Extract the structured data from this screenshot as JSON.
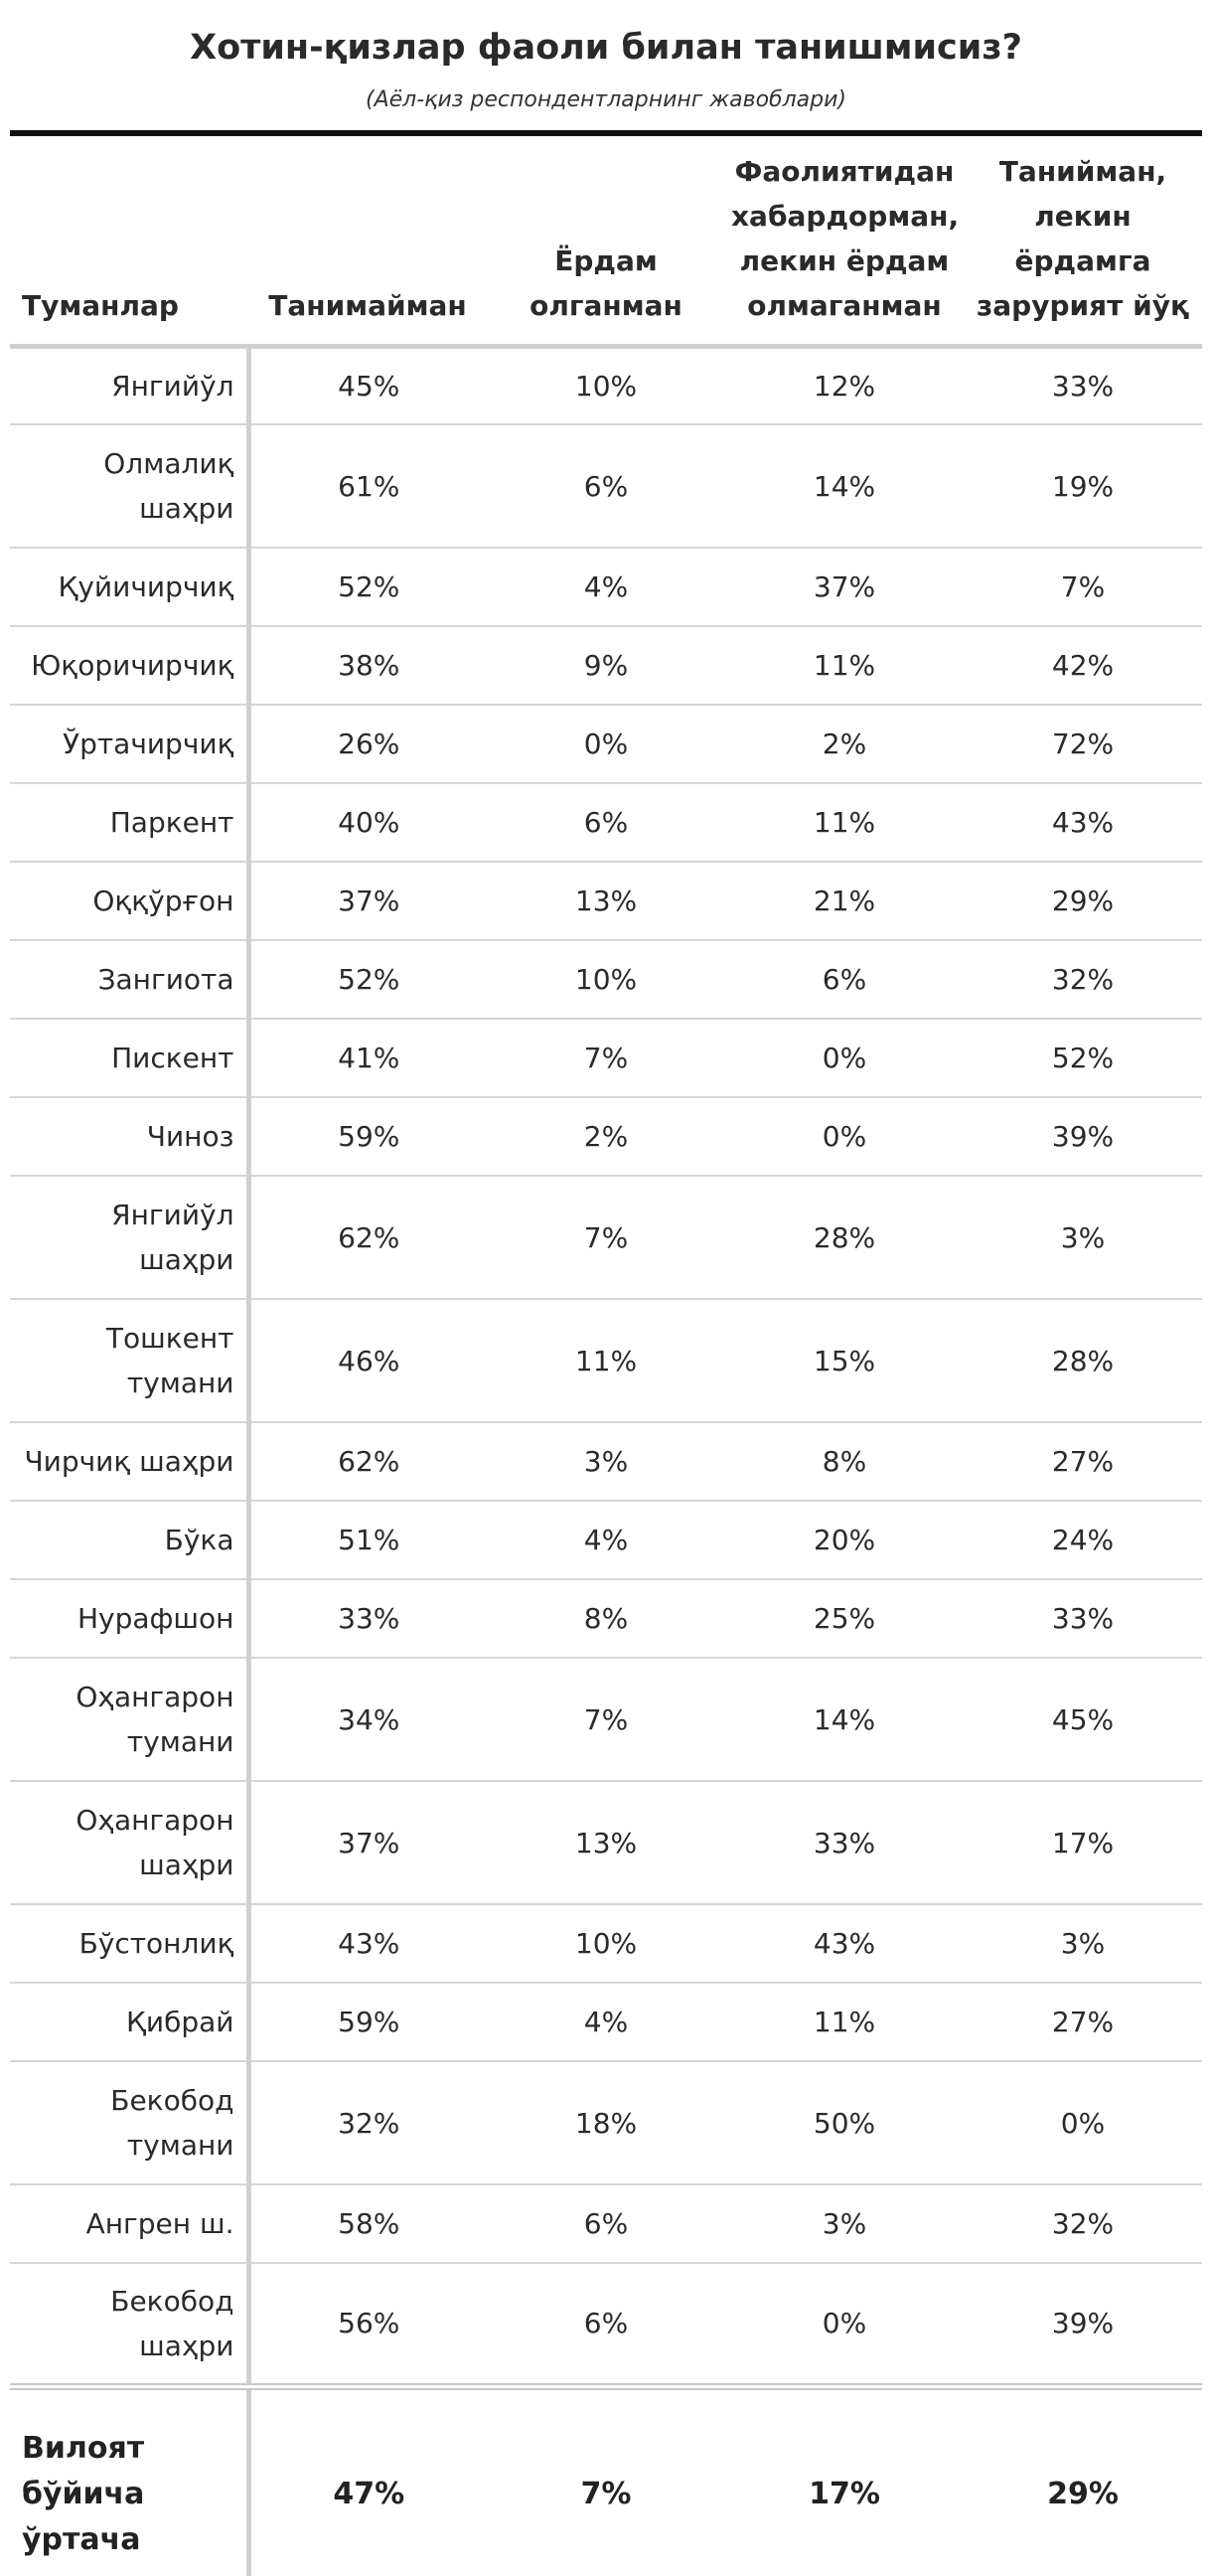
{
  "title": "Хотин-қизлар фаоли билан танишмисиз?",
  "subtitle": "(Аёл-қиз респондентларнинг жавоблари)",
  "chart_data": {
    "type": "table",
    "columns": [
      "Туманлар",
      "Танимайман",
      "Ёрдам олганман",
      "Фаолиятидан хабардорман, лекин ёрдам олмаганман",
      "Танийман, лекин ёрдамга зарурият йўқ"
    ],
    "rows": [
      {
        "name": "Янгийўл",
        "values": [
          "45%",
          "10%",
          "12%",
          "33%"
        ]
      },
      {
        "name": "Олмалиқ шаҳри",
        "values": [
          "61%",
          "6%",
          "14%",
          "19%"
        ]
      },
      {
        "name": "Қуйичирчиқ",
        "values": [
          "52%",
          "4%",
          "37%",
          "7%"
        ]
      },
      {
        "name": "Юқоричирчиқ",
        "values": [
          "38%",
          "9%",
          "11%",
          "42%"
        ]
      },
      {
        "name": "Ўртачирчиқ",
        "values": [
          "26%",
          "0%",
          "2%",
          "72%"
        ]
      },
      {
        "name": "Паркент",
        "values": [
          "40%",
          "6%",
          "11%",
          "43%"
        ]
      },
      {
        "name": "Оққўрғон",
        "values": [
          "37%",
          "13%",
          "21%",
          "29%"
        ]
      },
      {
        "name": "Зангиота",
        "values": [
          "52%",
          "10%",
          "6%",
          "32%"
        ]
      },
      {
        "name": "Пискент",
        "values": [
          "41%",
          "7%",
          "0%",
          "52%"
        ]
      },
      {
        "name": "Чиноз",
        "values": [
          "59%",
          "2%",
          "0%",
          "39%"
        ]
      },
      {
        "name": "Янгийўл шаҳри",
        "values": [
          "62%",
          "7%",
          "28%",
          "3%"
        ]
      },
      {
        "name": "Тошкент тумани",
        "values": [
          "46%",
          "11%",
          "15%",
          "28%"
        ]
      },
      {
        "name": "Чирчиқ шаҳри",
        "values": [
          "62%",
          "3%",
          "8%",
          "27%"
        ]
      },
      {
        "name": "Бўка",
        "values": [
          "51%",
          "4%",
          "20%",
          "24%"
        ]
      },
      {
        "name": "Нурафшон",
        "values": [
          "33%",
          "8%",
          "25%",
          "33%"
        ]
      },
      {
        "name": "Оҳангарон тумани",
        "values": [
          "34%",
          "7%",
          "14%",
          "45%"
        ]
      },
      {
        "name": "Оҳангарон шаҳри",
        "values": [
          "37%",
          "13%",
          "33%",
          "17%"
        ]
      },
      {
        "name": "Бўстонлиқ",
        "values": [
          "43%",
          "10%",
          "43%",
          "3%"
        ]
      },
      {
        "name": "Қибрай",
        "values": [
          "59%",
          "4%",
          "11%",
          "27%"
        ]
      },
      {
        "name": "Бекобод тумани",
        "values": [
          "32%",
          "18%",
          "50%",
          "0%"
        ]
      },
      {
        "name": "Ангрен ш.",
        "values": [
          "58%",
          "6%",
          "3%",
          "32%"
        ]
      },
      {
        "name": "Бекобод шаҳри",
        "values": [
          "56%",
          "6%",
          "0%",
          "39%"
        ]
      }
    ],
    "total": {
      "name": "Вилоят бўйича ўртача",
      "values": [
        "47%",
        "7%",
        "17%",
        "29%"
      ]
    }
  }
}
